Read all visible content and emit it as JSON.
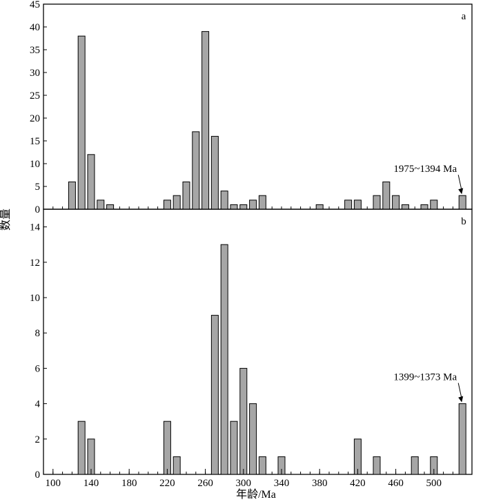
{
  "chart_data": [
    {
      "type": "bar",
      "panel_label": "a",
      "ylim": [
        0,
        45
      ],
      "yticks": [
        0,
        5,
        10,
        15,
        20,
        25,
        30,
        35,
        40,
        45
      ],
      "x": [
        120,
        130,
        140,
        150,
        160,
        220,
        230,
        240,
        250,
        260,
        270,
        280,
        290,
        300,
        310,
        320,
        380,
        410,
        420,
        440,
        450,
        460,
        470,
        490,
        500,
        530
      ],
      "values": [
        6,
        38,
        12,
        2,
        1,
        2,
        3,
        6,
        17,
        39,
        16,
        4,
        1,
        1,
        2,
        3,
        1,
        2,
        2,
        3,
        6,
        3,
        1,
        1,
        2,
        3
      ],
      "annotation": {
        "text": "1975~1394 Ma",
        "x": 530
      }
    },
    {
      "type": "bar",
      "panel_label": "b",
      "ylim": [
        0,
        15
      ],
      "yticks": [
        0,
        2,
        4,
        6,
        8,
        10,
        12,
        14
      ],
      "x": [
        130,
        140,
        220,
        230,
        270,
        280,
        290,
        300,
        310,
        320,
        340,
        420,
        440,
        480,
        500,
        530
      ],
      "values": [
        3,
        2,
        3,
        1,
        9,
        13,
        3,
        6,
        4,
        1,
        1,
        2,
        1,
        1,
        1,
        4
      ],
      "annotation": {
        "text": "1399~1373 Ma",
        "x": 530
      }
    }
  ],
  "x_axis": {
    "xlim": [
      90,
      540
    ],
    "ticks": [
      100,
      140,
      180,
      220,
      260,
      300,
      340,
      380,
      420,
      460,
      500
    ],
    "tick_labels": [
      "100",
      "140",
      "180",
      "220",
      "260",
      "300",
      "340",
      "380",
      "420",
      "460",
      "500"
    ],
    "label": "年龄/Ma"
  },
  "y_axis": {
    "label": "数量"
  },
  "style": {
    "bar_fill": "#a6a6a6",
    "bar_stroke": "#000000",
    "axis_color": "#000000"
  }
}
